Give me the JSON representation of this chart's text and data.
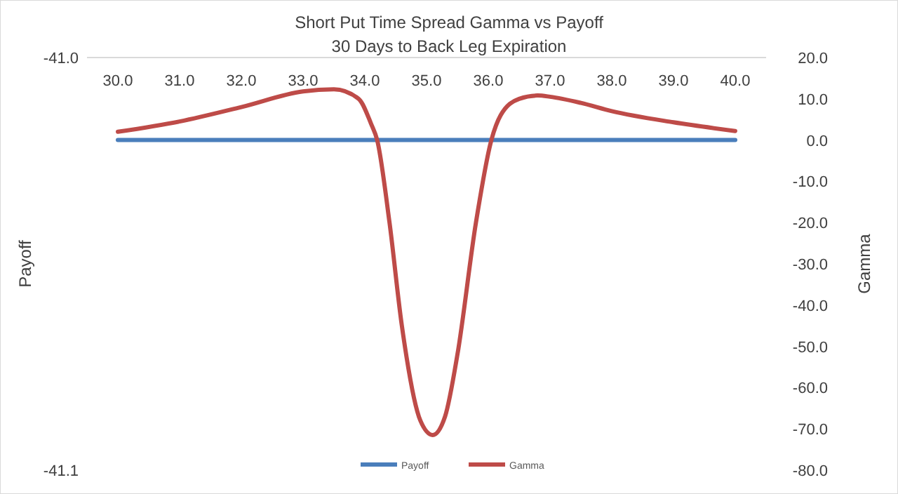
{
  "chart_data": {
    "type": "line",
    "title": "Short Put Time Spread Gamma vs Payoff",
    "subtitle": "30 Days to Back Leg Expiration",
    "ylabel": "Payoff",
    "y2label": "Gamma",
    "xlim": [
      29.5,
      40.5
    ],
    "xticks": [
      {
        "value": 30,
        "label": "30.0"
      },
      {
        "value": 31,
        "label": "31.0"
      },
      {
        "value": 32,
        "label": "32.0"
      },
      {
        "value": 33,
        "label": "33.0"
      },
      {
        "value": 34,
        "label": "34.0"
      },
      {
        "value": 35,
        "label": "35.0"
      },
      {
        "value": 36,
        "label": "36.0"
      },
      {
        "value": 37,
        "label": "37.0"
      },
      {
        "value": 38,
        "label": "38.0"
      },
      {
        "value": 39,
        "label": "39.0"
      },
      {
        "value": 40,
        "label": "40.0"
      }
    ],
    "ylim": [
      -41.1,
      -41.0
    ],
    "yticks": [
      {
        "value": -41.1,
        "label": "-41.1"
      },
      {
        "value": -41.0,
        "label": "-41.0"
      }
    ],
    "y2lim": [
      -80,
      20
    ],
    "y2ticks": [
      {
        "value": -80,
        "label": "-80.0"
      },
      {
        "value": -70,
        "label": "-70.0"
      },
      {
        "value": -60,
        "label": "-60.0"
      },
      {
        "value": -50,
        "label": "-50.0"
      },
      {
        "value": -40,
        "label": "-40.0"
      },
      {
        "value": -30,
        "label": "-30.0"
      },
      {
        "value": -20,
        "label": "-20.0"
      },
      {
        "value": -10,
        "label": "-10.0"
      },
      {
        "value": 0,
        "label": "0.0"
      },
      {
        "value": 10,
        "label": "10.0"
      },
      {
        "value": 20,
        "label": "20.0"
      }
    ],
    "grid": false,
    "legend": "bottom",
    "marker": "none",
    "line_style": "solid",
    "series": [
      {
        "name": "Payoff",
        "color": "#4a7ebb",
        "x": [
          30,
          40
        ],
        "values": [
          -41.02,
          -41.02
        ]
      },
      {
        "name": "Gamma",
        "color": "#be4b48",
        "axis": "y2",
        "x": [
          30,
          31,
          32,
          33,
          33.5,
          33.9,
          34.1,
          34.2,
          34.4,
          34.6,
          34.9,
          35.1,
          35.3,
          35.5,
          35.8,
          36.05,
          36.2,
          36.5,
          36.8,
          37,
          37.5,
          38,
          39,
          40
        ],
        "values": [
          2.0,
          4.5,
          8,
          11.8,
          12.3,
          10,
          4,
          0,
          -20,
          -45,
          -68,
          -71.5,
          -67,
          -52,
          -20,
          0,
          6,
          10,
          10.8,
          10.5,
          9,
          7,
          4.3,
          2.2
        ]
      }
    ]
  }
}
